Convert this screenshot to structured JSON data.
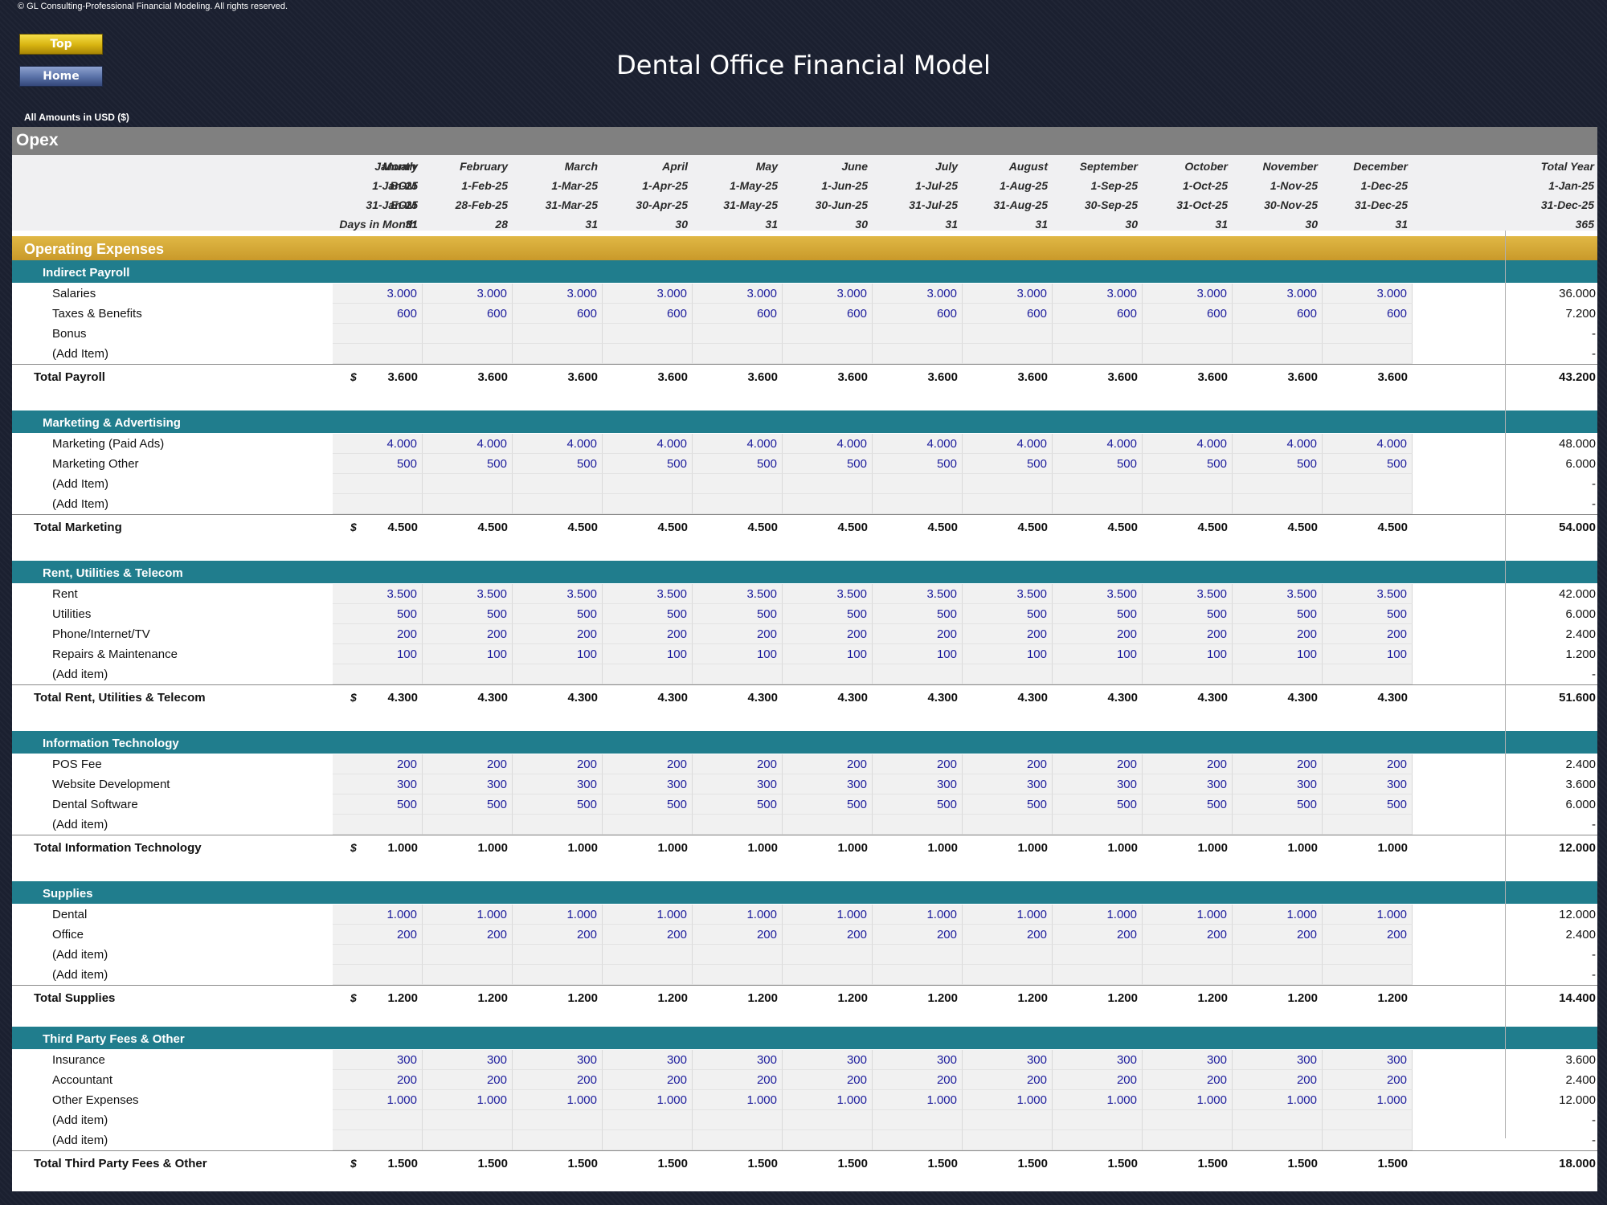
{
  "copyright": "© GL Consulting-Professional Financial Modeling. All rights reserved.",
  "nav": {
    "top_label": "Top",
    "home_label": "Home"
  },
  "title": "Dental Office Financial Model",
  "amounts_label": "All Amounts in  USD ($)",
  "sheet_name": "Opex",
  "header": {
    "labels": [
      "Month",
      "BOM",
      "EOM",
      "Days in Month"
    ],
    "months": [
      "January",
      "February",
      "March",
      "April",
      "May",
      "June",
      "July",
      "August",
      "September",
      "October",
      "November",
      "December"
    ],
    "total_label": "Total Year",
    "bom": [
      "1-Jan-25",
      "1-Feb-25",
      "1-Mar-25",
      "1-Apr-25",
      "1-May-25",
      "1-Jun-25",
      "1-Jul-25",
      "1-Aug-25",
      "1-Sep-25",
      "1-Oct-25",
      "1-Nov-25",
      "1-Dec-25"
    ],
    "bom_total": "1-Jan-25",
    "eom": [
      "31-Jan-25",
      "28-Feb-25",
      "31-Mar-25",
      "30-Apr-25",
      "31-May-25",
      "30-Jun-25",
      "31-Jul-25",
      "31-Aug-25",
      "30-Sep-25",
      "31-Oct-25",
      "30-Nov-25",
      "31-Dec-25"
    ],
    "eom_total": "31-Dec-25",
    "days": [
      "31",
      "28",
      "31",
      "30",
      "31",
      "30",
      "31",
      "31",
      "30",
      "31",
      "30",
      "31"
    ],
    "days_total": "365"
  },
  "section_title": "Operating Expenses",
  "groups": [
    {
      "name": "Indirect Payroll",
      "items": [
        {
          "label": "Salaries",
          "unit": "$",
          "value": "3.000",
          "total": "36.000"
        },
        {
          "label": "Taxes & Benefits",
          "unit": "$",
          "value": "600",
          "total": "7.200"
        },
        {
          "label": "Bonus",
          "unit": "$",
          "value": "",
          "total": "-"
        },
        {
          "label": "(Add Item)",
          "unit": "$",
          "value": "",
          "total": "-"
        }
      ],
      "total": {
        "label": "Total Payroll",
        "unit": "$",
        "value": "3.600",
        "total": "43.200"
      }
    },
    {
      "name": "Marketing & Advertising",
      "items": [
        {
          "label": "Marketing (Paid Ads)",
          "unit": "$",
          "value": "4.000",
          "total": "48.000"
        },
        {
          "label": "Marketing Other",
          "unit": "$",
          "value": "500",
          "total": "6.000"
        },
        {
          "label": "(Add Item)",
          "unit": "$",
          "value": "",
          "total": "-"
        },
        {
          "label": "(Add Item)",
          "unit": "$",
          "value": "",
          "total": "-"
        }
      ],
      "total": {
        "label": "Total Marketing",
        "unit": "$",
        "value": "4.500",
        "total": "54.000"
      }
    },
    {
      "name": "Rent, Utilities & Telecom",
      "items": [
        {
          "label": "Rent",
          "unit": "$",
          "value": "3.500",
          "total": "42.000"
        },
        {
          "label": "Utilities",
          "unit": "$",
          "value": "500",
          "total": "6.000"
        },
        {
          "label": "Phone/Internet/TV",
          "unit": "$",
          "value": "200",
          "total": "2.400"
        },
        {
          "label": "Repairs & Maintenance",
          "unit": "$",
          "value": "100",
          "total": "1.200"
        },
        {
          "label": "(Add item)",
          "unit": "$",
          "value": "",
          "total": "-"
        }
      ],
      "total": {
        "label": "Total Rent, Utilities & Telecom",
        "unit": "$",
        "value": "4.300",
        "total": "51.600"
      }
    },
    {
      "name": "Information Technology",
      "items": [
        {
          "label": "POS Fee",
          "unit": "$",
          "value": "200",
          "total": "2.400"
        },
        {
          "label": "Website Development",
          "unit": "$",
          "value": "300",
          "total": "3.600"
        },
        {
          "label": "Dental Software",
          "unit": "$",
          "value": "500",
          "total": "6.000"
        },
        {
          "label": "(Add item)",
          "unit": "$",
          "value": "",
          "total": "-"
        }
      ],
      "total": {
        "label": "Total Information Technology",
        "unit": "$",
        "value": "1.000",
        "total": "12.000"
      }
    },
    {
      "name": "Supplies",
      "items": [
        {
          "label": "Dental",
          "unit": "$",
          "value": "1.000",
          "total": "12.000"
        },
        {
          "label": "Office",
          "unit": "",
          "value": "200",
          "total": "2.400"
        },
        {
          "label": "(Add item)",
          "unit": "$",
          "value": "",
          "total": "-"
        },
        {
          "label": "(Add item)",
          "unit": "$",
          "value": "",
          "total": "-"
        }
      ],
      "total": {
        "label": "Total Supplies",
        "unit": "$",
        "value": "1.200",
        "total": "14.400"
      }
    },
    {
      "name": "Third Party Fees & Other",
      "items": [
        {
          "label": "Insurance",
          "unit": "$",
          "value": "300",
          "total": "3.600"
        },
        {
          "label": "Accountant",
          "unit": "$",
          "value": "200",
          "total": "2.400"
        },
        {
          "label": "Other Expenses",
          "unit": "$",
          "value": "1.000",
          "total": "12.000"
        },
        {
          "label": "(Add item)",
          "unit": "$",
          "value": "",
          "total": "-"
        },
        {
          "label": "(Add item)",
          "unit": "$",
          "value": "",
          "total": "-"
        }
      ],
      "total": {
        "label": "Total Third Party Fees & Other",
        "unit": "$",
        "value": "1.500",
        "total": "18.000"
      }
    }
  ],
  "colors": {
    "background": "#1b2030",
    "opex_band": "#808080",
    "section_gold": "#c9992a",
    "group_teal": "#207d8d",
    "input_blue": "#1c1c9c",
    "top_button": "#d7b310",
    "home_button": "#5870a6"
  }
}
